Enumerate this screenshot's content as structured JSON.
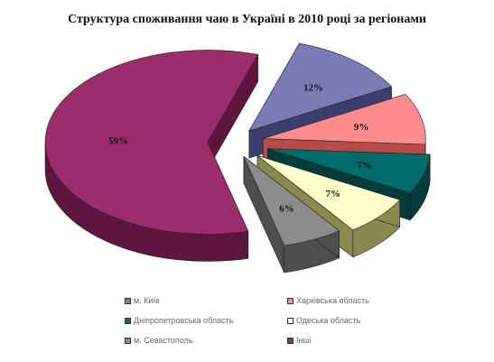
{
  "chart_data": {
    "type": "pie",
    "title": "Структура споживання чаю в Україні в 2010 році за регіонами",
    "categories": [
      "м. Київ",
      "Харківська область",
      "Дніпропетровська область",
      "Одеська область",
      "м. Севастополь",
      "Інші"
    ],
    "values": [
      12,
      9,
      7,
      7,
      6,
      59
    ],
    "value_labels": [
      "12%",
      "9%",
      "7%",
      "7%",
      "6%",
      "59%"
    ],
    "colors": [
      "#7B7BB8",
      "#FF8C8C",
      "#006B6B",
      "#FFFFCC",
      "#8C8C8C",
      "#9B2D6A"
    ],
    "side_colors": [
      "#3E3E6E",
      "#B84A4A",
      "#003C3C",
      "#8A8A50",
      "#4E4E4E",
      "#5E1540"
    ],
    "exploded": true,
    "legend_position": "bottom",
    "grid": false
  }
}
